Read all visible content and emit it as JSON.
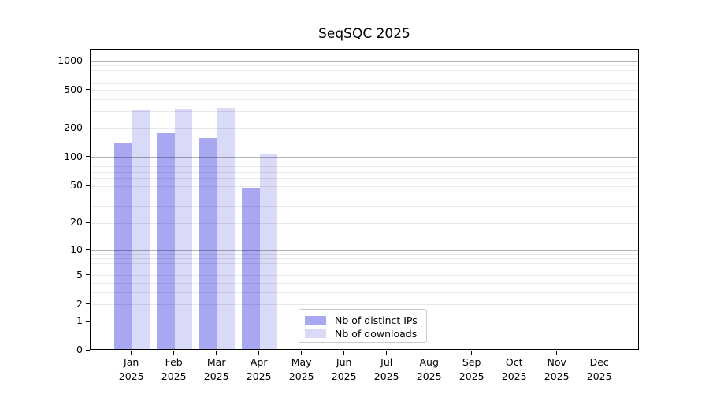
{
  "chart_data": {
    "type": "bar",
    "title": "SeqSQC 2025",
    "year_label": "2025",
    "months": [
      "Jan",
      "Feb",
      "Mar",
      "Apr",
      "May",
      "Jun",
      "Jul",
      "Aug",
      "Sep",
      "Oct",
      "Nov",
      "Dec"
    ],
    "series": [
      {
        "name": "Nb of distinct IPs",
        "color": "#a8a8f2",
        "values": [
          139,
          173,
          154,
          46,
          0,
          0,
          0,
          0,
          0,
          0,
          0,
          0
        ]
      },
      {
        "name": "Nb of downloads",
        "color": "#d9d9f8",
        "values": [
          305,
          310,
          314,
          104,
          0,
          0,
          0,
          0,
          0,
          0,
          0,
          0
        ]
      }
    ],
    "y_scale": "log1p",
    "ylim": [
      0,
      1300
    ],
    "y_ticks": [
      0,
      1,
      2,
      5,
      10,
      20,
      50,
      100,
      200,
      500,
      1000
    ],
    "y_major_gridlines": [
      1,
      10,
      100,
      1000
    ],
    "y_minor_gridlines": [
      2,
      3,
      4,
      5,
      6,
      7,
      8,
      9,
      20,
      30,
      40,
      50,
      60,
      70,
      80,
      90,
      200,
      300,
      400,
      500,
      600,
      700,
      800,
      900
    ],
    "grid": true,
    "legend_position": "lower-center",
    "colors": {
      "axis": "#000000",
      "grid_major": "#b0b0b0",
      "grid_minor": "#e9e9e9",
      "legend_border": "#cccccc",
      "background": "#ffffff"
    }
  }
}
